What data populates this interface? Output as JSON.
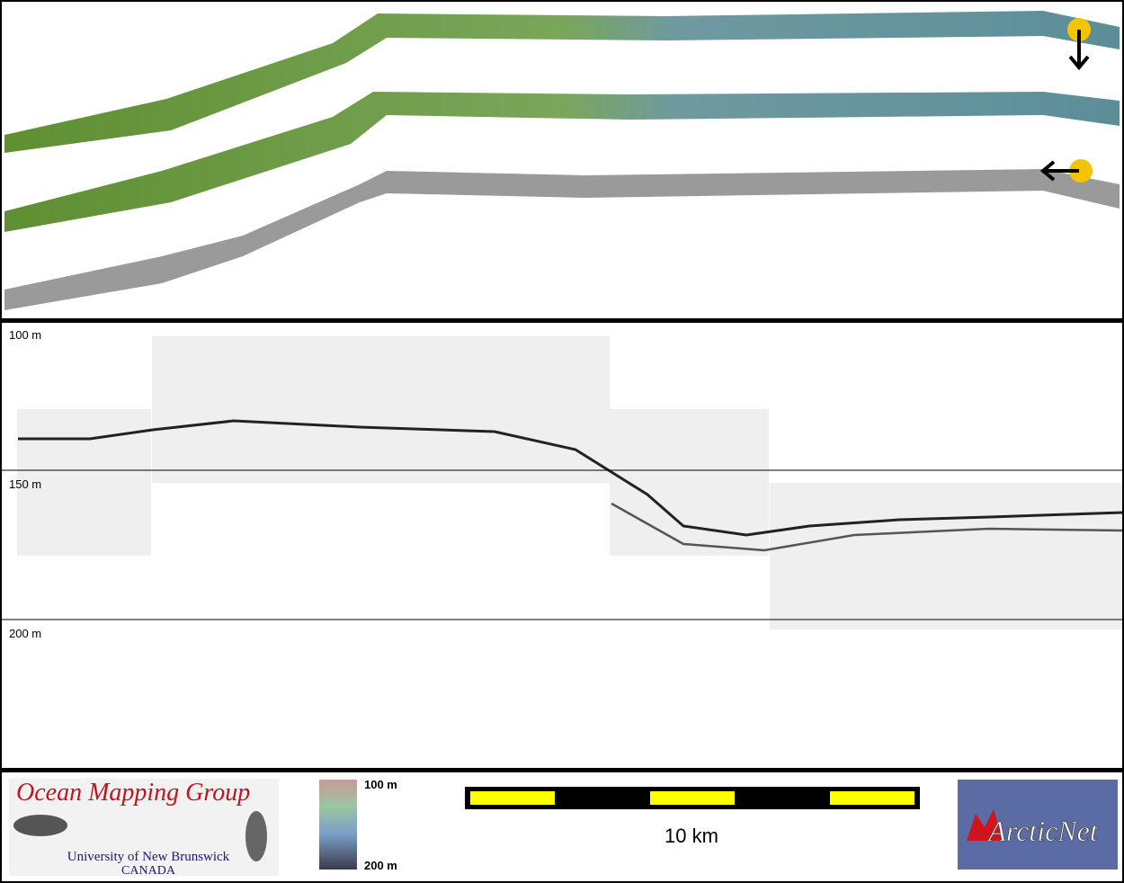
{
  "profile": {
    "depth_labels": [
      "100 m",
      "150 m",
      "200 m"
    ]
  },
  "footer": {
    "logo": {
      "title": "Ocean Mapping Group",
      "subtitle": "University of New Brunswick",
      "country": "CANADA"
    },
    "color_scale": {
      "top": "100 m",
      "bottom": "200 m"
    },
    "scale_bar": {
      "label": "10 km"
    },
    "partner": "ArcticNet"
  }
}
